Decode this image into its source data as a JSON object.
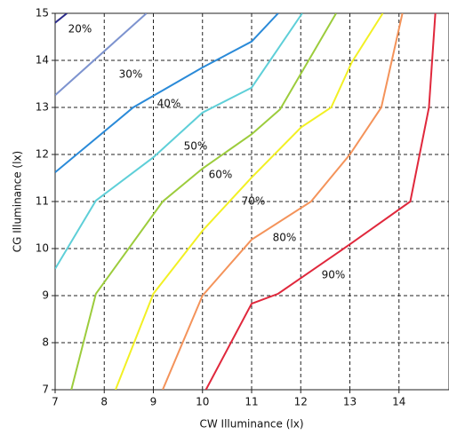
{
  "chart_data": {
    "type": "line",
    "xlabel": "CW Illuminance (lx)",
    "ylabel": "CG Illuminance (lx)",
    "xlim": [
      7,
      15
    ],
    "xticks": [
      7,
      8,
      9,
      10,
      11,
      12,
      13,
      14
    ],
    "ylim": [
      7,
      15
    ],
    "yticks": [
      7,
      8,
      9,
      10,
      11,
      12,
      13,
      14,
      15
    ],
    "grid": true,
    "series": [
      {
        "name": "20%",
        "color": "#2a2a8a",
        "x": [
          7,
          7.24
        ],
        "values": [
          14.8,
          15
        ]
      },
      {
        "name": "30%",
        "color": "#7d93cf",
        "x": [
          7,
          8.86
        ],
        "values": [
          13.26,
          15
        ]
      },
      {
        "name": "40%",
        "color": "#2a8ad8",
        "x": [
          7,
          8.59,
          10,
          11,
          11.54
        ],
        "values": [
          11.62,
          13,
          13.85,
          14.4,
          15
        ]
      },
      {
        "name": "50%",
        "color": "#5ecfd8",
        "x": [
          7,
          7.83,
          9,
          10,
          11,
          12.03
        ],
        "values": [
          9.57,
          11.02,
          11.94,
          12.89,
          13.42,
          15
        ]
      },
      {
        "name": "60%",
        "color": "#9ccc3c",
        "x": [
          7.33,
          7.83,
          9.19,
          10,
          11,
          11.58,
          12.72
        ],
        "values": [
          7,
          9.04,
          11,
          11.7,
          12.43,
          12.96,
          15
        ]
      },
      {
        "name": "70%",
        "color": "#f2f024",
        "x": [
          8.23,
          9,
          10,
          11,
          12.01,
          12.62,
          13.04,
          13.67
        ],
        "values": [
          7,
          9.04,
          10.38,
          11.51,
          12.58,
          13,
          13.96,
          15
        ]
      },
      {
        "name": "80%",
        "color": "#f4935a",
        "x": [
          9.19,
          10,
          11,
          12.21,
          13,
          13.64,
          14.07
        ],
        "values": [
          7,
          9,
          10.19,
          11,
          12,
          13,
          15
        ]
      },
      {
        "name": "90%",
        "color": "#e0283c",
        "x": [
          10.07,
          11,
          11.54,
          13,
          14.23,
          14.61,
          14.74
        ],
        "values": [
          7,
          8.83,
          9.04,
          10.09,
          11,
          13,
          15
        ]
      }
    ]
  }
}
